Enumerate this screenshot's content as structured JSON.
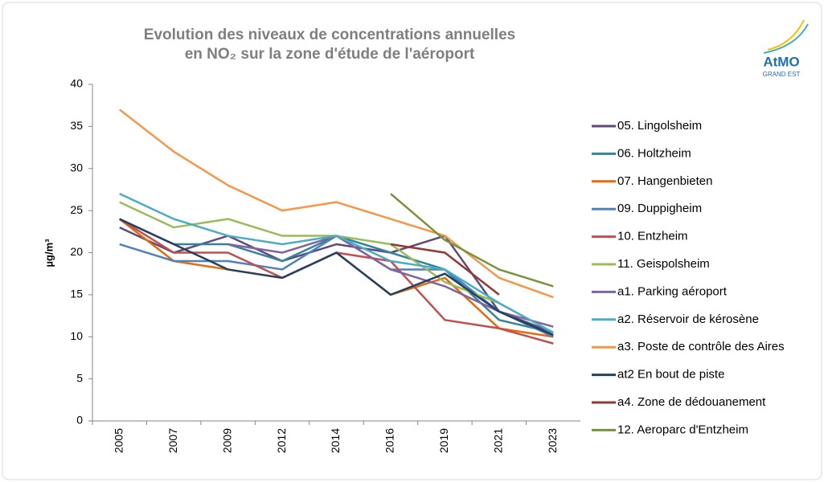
{
  "chart_data": {
    "type": "line",
    "title": [
      "Evolution des niveaux de concentrations annuelles",
      "en NO₂ sur la zone d'étude de l'aéroport"
    ],
    "y_label": "µg/m³",
    "logo": {
      "name": "AtMO",
      "subtitle": "GRAND EST"
    },
    "categories": [
      "2005",
      "2007",
      "2009",
      "2012",
      "2014",
      "2016",
      "2019",
      "2021",
      "2023"
    ],
    "ylim": [
      0,
      40
    ],
    "yticks": [
      0,
      5,
      10,
      15,
      20,
      25,
      30,
      35,
      40
    ],
    "grid": false,
    "legend": "right",
    "series": [
      {
        "name": "05. Lingolsheim",
        "color": "#604a7b",
        "values": [
          23,
          20,
          22,
          19,
          21,
          20,
          22,
          13,
          10.5
        ]
      },
      {
        "name": "06. Holtzheim",
        "color": "#31859c",
        "values": [
          24,
          21,
          21,
          19,
          22,
          20,
          18,
          12,
          10.5
        ]
      },
      {
        "name": "07. Hangenbieten",
        "color": "#e46c0a",
        "values": [
          24,
          19,
          18,
          17,
          20,
          15,
          17,
          11,
          10
        ]
      },
      {
        "name": "09. Duppigheim",
        "color": "#4f81bd",
        "values": [
          21,
          19,
          19,
          18,
          22,
          18,
          18,
          13,
          10
        ]
      },
      {
        "name": "10. Entzheim",
        "color": "#c0504d",
        "values": [
          24,
          20,
          20,
          17,
          20,
          19,
          12,
          11,
          9.2
        ]
      },
      {
        "name": "11. Geispolsheim",
        "color": "#9bbb59",
        "values": [
          26,
          23,
          24,
          22,
          22,
          21,
          16.5,
          14,
          10.5
        ]
      },
      {
        "name": "a1. Parking aéroport",
        "color": "#8064a2",
        "values": [
          null,
          null,
          21,
          20,
          22,
          18,
          16,
          13,
          11.2
        ]
      },
      {
        "name": "a2. Réservoir de kérosène",
        "color": "#4bacc6",
        "values": [
          27,
          24,
          22,
          21,
          22,
          19,
          18,
          14,
          10.5
        ]
      },
      {
        "name": "a3. Poste de contrôle des Aires",
        "color": "#f79646",
        "values": [
          37,
          32,
          28,
          25,
          26,
          24,
          22,
          17,
          14.7
        ]
      },
      {
        "name": "at2 En bout de piste",
        "color": "#254061",
        "values": [
          24,
          21,
          18,
          17,
          20,
          15,
          17.5,
          13,
          10.2
        ]
      },
      {
        "name": "a4. Zone de dédouanement",
        "color": "#953735",
        "values": [
          null,
          null,
          null,
          null,
          null,
          21,
          20,
          15,
          null
        ]
      },
      {
        "name": "12. Aeroparc d'Entzheim",
        "color": "#77933c",
        "values": [
          null,
          null,
          null,
          null,
          null,
          27,
          21.5,
          18,
          16
        ]
      }
    ]
  }
}
